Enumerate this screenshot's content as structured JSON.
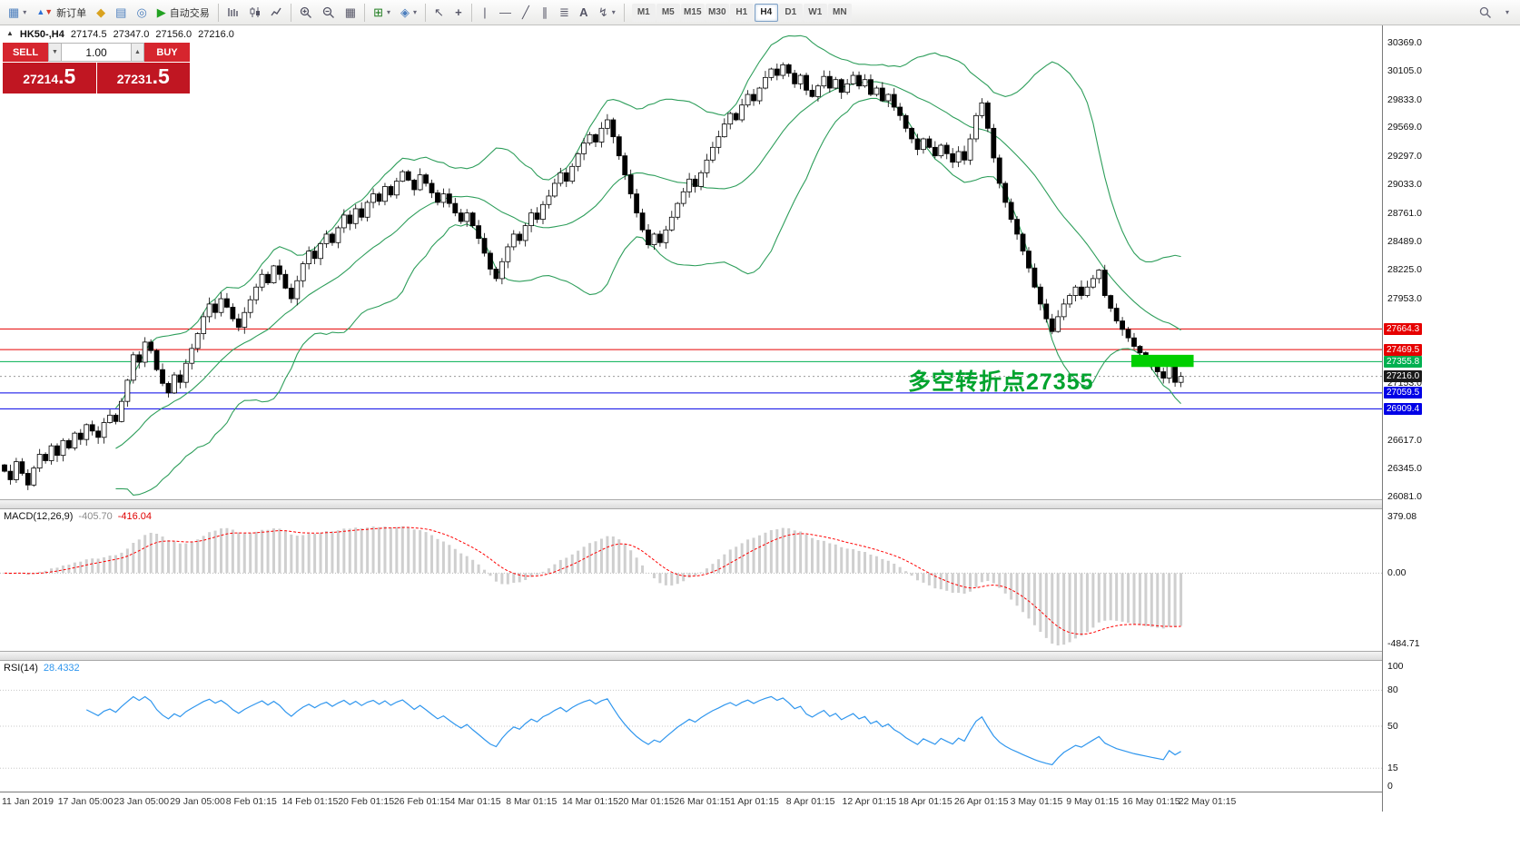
{
  "toolbar": {
    "new_order_label": "新订单",
    "autotrading_label": "自动交易",
    "timeframes": [
      "M1",
      "M5",
      "M15",
      "M30",
      "H1",
      "H4",
      "D1",
      "W1",
      "MN"
    ],
    "active_timeframe": "H4"
  },
  "chart_header": {
    "symbol": "HK50-,H4",
    "open": "27174.5",
    "high": "27347.0",
    "low": "27156.0",
    "close": "27216.0"
  },
  "trade_panel": {
    "sell_label": "SELL",
    "buy_label": "BUY",
    "volume": "1.00",
    "sell_price_main": "27214",
    "sell_price_frac": ".5",
    "buy_price_main": "27231",
    "buy_price_frac": ".5"
  },
  "annotation": {
    "text": "多空转折点27355",
    "color": "#00a32e"
  },
  "indicators": {
    "macd": {
      "label": "MACD(12,26,9)",
      "value_main": "-405.70",
      "value_signal": "-416.04",
      "scale_labels": [
        "379.08",
        "0.00",
        "-484.71"
      ]
    },
    "rsi": {
      "label": "RSI(14)",
      "value": "28.4332",
      "scale_labels": [
        "100",
        "80",
        "50",
        "15",
        "0"
      ]
    }
  },
  "price_axis": {
    "labels": [
      "30369.0",
      "30105.0",
      "29833.0",
      "29569.0",
      "29297.0",
      "29033.0",
      "28761.0",
      "28489.0",
      "28225.0",
      "27953.0",
      "27153.0",
      "26617.0",
      "26345.0",
      "26081.0"
    ],
    "tags": [
      {
        "text": "27664.3",
        "bg": "#e60000"
      },
      {
        "text": "27469.5",
        "bg": "#e60000"
      },
      {
        "text": "27355.8",
        "bg": "#00b050"
      },
      {
        "text": "27216.0",
        "bg": "#1a1a1a"
      },
      {
        "text": "27059.5",
        "bg": "#0000e6"
      },
      {
        "text": "26909.4",
        "bg": "#0000e6"
      }
    ]
  },
  "time_axis": {
    "labels": [
      "11 Jan 2019",
      "17 Jan 05:00",
      "23 Jan 05:00",
      "29 Jan 05:00",
      "8 Feb 01:15",
      "14 Feb 01:15",
      "20 Feb 01:15",
      "26 Feb 01:15",
      "4 Mar 01:15",
      "8 Mar 01:15",
      "14 Mar 01:15",
      "20 Mar 01:15",
      "26 Mar 01:15",
      "1 Apr 01:15",
      "8 Apr 01:15",
      "12 Apr 01:15",
      "18 Apr 01:15",
      "26 Apr 01:15",
      "3 May 01:15",
      "9 May 01:15",
      "16 May 01:15",
      "22 May 01:15"
    ]
  },
  "chart_data": {
    "type": "candlestick",
    "symbol": "HK50-",
    "timeframe": "H4",
    "ylim": [
      26081,
      30369
    ],
    "open_first": 26380,
    "closes": [
      26320,
      26240,
      26410,
      26300,
      26190,
      26350,
      26480,
      26420,
      26560,
      26470,
      26610,
      26540,
      26680,
      26620,
      26760,
      26700,
      26640,
      26780,
      26850,
      26790,
      26980,
      27180,
      27420,
      27350,
      27540,
      27460,
      27280,
      27150,
      27060,
      27230,
      27160,
      27340,
      27480,
      27620,
      27780,
      27900,
      27820,
      27950,
      27870,
      27760,
      27680,
      27820,
      27940,
      28060,
      28180,
      28100,
      28260,
      28180,
      28050,
      27950,
      28120,
      28280,
      28400,
      28330,
      28470,
      28560,
      28480,
      28620,
      28740,
      28660,
      28800,
      28720,
      28860,
      28940,
      28870,
      29010,
      28930,
      29060,
      29150,
      29070,
      28980,
      29120,
      29040,
      28950,
      28860,
      28940,
      28850,
      28760,
      28680,
      28760,
      28640,
      28520,
      28380,
      28230,
      28140,
      28300,
      28440,
      28560,
      28500,
      28640,
      28760,
      28700,
      28840,
      28920,
      29040,
      29140,
      29060,
      29200,
      29320,
      29420,
      29500,
      29430,
      29560,
      29640,
      29480,
      29300,
      29120,
      28940,
      28760,
      28600,
      28460,
      28560,
      28480,
      28600,
      28720,
      28850,
      28960,
      29080,
      29010,
      29140,
      29260,
      29380,
      29480,
      29600,
      29700,
      29640,
      29780,
      29880,
      29820,
      29940,
      30040,
      30120,
      30060,
      30160,
      30080,
      29980,
      30060,
      29920,
      29860,
      29960,
      30050,
      29940,
      30020,
      29900,
      29980,
      30060,
      29960,
      30020,
      29880,
      29940,
      29820,
      29880,
      29760,
      29680,
      29560,
      29460,
      29360,
      29460,
      29380,
      29300,
      29400,
      29320,
      29240,
      29340,
      29260,
      29460,
      29680,
      29800,
      29560,
      29280,
      29040,
      28860,
      28700,
      28560,
      28400,
      28240,
      28060,
      27900,
      27760,
      27640,
      27780,
      27900,
      27980,
      28060,
      27980,
      28060,
      28140,
      28220,
      27980,
      27860,
      27740,
      27660,
      27580,
      27500,
      27440,
      27380,
      27320,
      27260,
      27200,
      27340,
      27160,
      27216
    ],
    "overlays": {
      "bollinger": {
        "period": 20,
        "deviation": 2,
        "color": "#2e9e5b"
      }
    },
    "levels": [
      {
        "price": 27664.3,
        "color": "#e60000",
        "style": "solid"
      },
      {
        "price": 27469.5,
        "color": "#e60000",
        "style": "solid"
      },
      {
        "price": 27355.8,
        "color": "#00b050",
        "style": "solid"
      },
      {
        "price": 27216.0,
        "color": "#9a9a9a",
        "style": "dot"
      },
      {
        "price": 27059.5,
        "color": "#0000e6",
        "style": "solid"
      },
      {
        "price": 26909.4,
        "color": "#0000e6",
        "style": "solid"
      }
    ],
    "highlight_rect": {
      "start_index": 193,
      "price_top": 27420,
      "price_bottom": 27305,
      "color": "#00cf00"
    },
    "sub_indicators": [
      {
        "type": "macd",
        "fast": 12,
        "slow": 26,
        "signal": 9,
        "hist_color": "#cfcfcf",
        "signal_color": "#ff0000",
        "scale_max": 379.08,
        "scale_min": -484.71
      },
      {
        "type": "rsi",
        "period": 14,
        "color": "#2f96ee",
        "levels": [
          80,
          50,
          15
        ]
      }
    ]
  }
}
